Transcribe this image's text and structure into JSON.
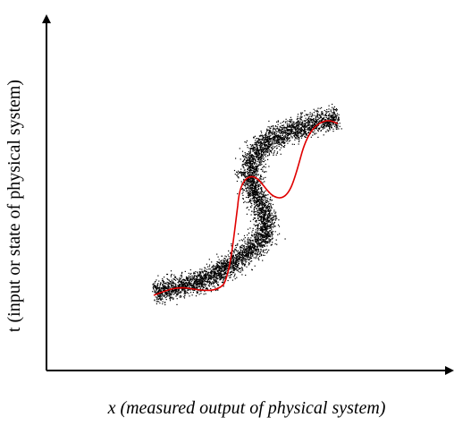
{
  "figure": {
    "xlabel": "x (measured output of physical system)",
    "ylabel": "t  (input or state of physical system)",
    "colors": {
      "axis": "#000000",
      "scatter": "#000000",
      "fit_curve": "#e00000"
    }
  }
}
